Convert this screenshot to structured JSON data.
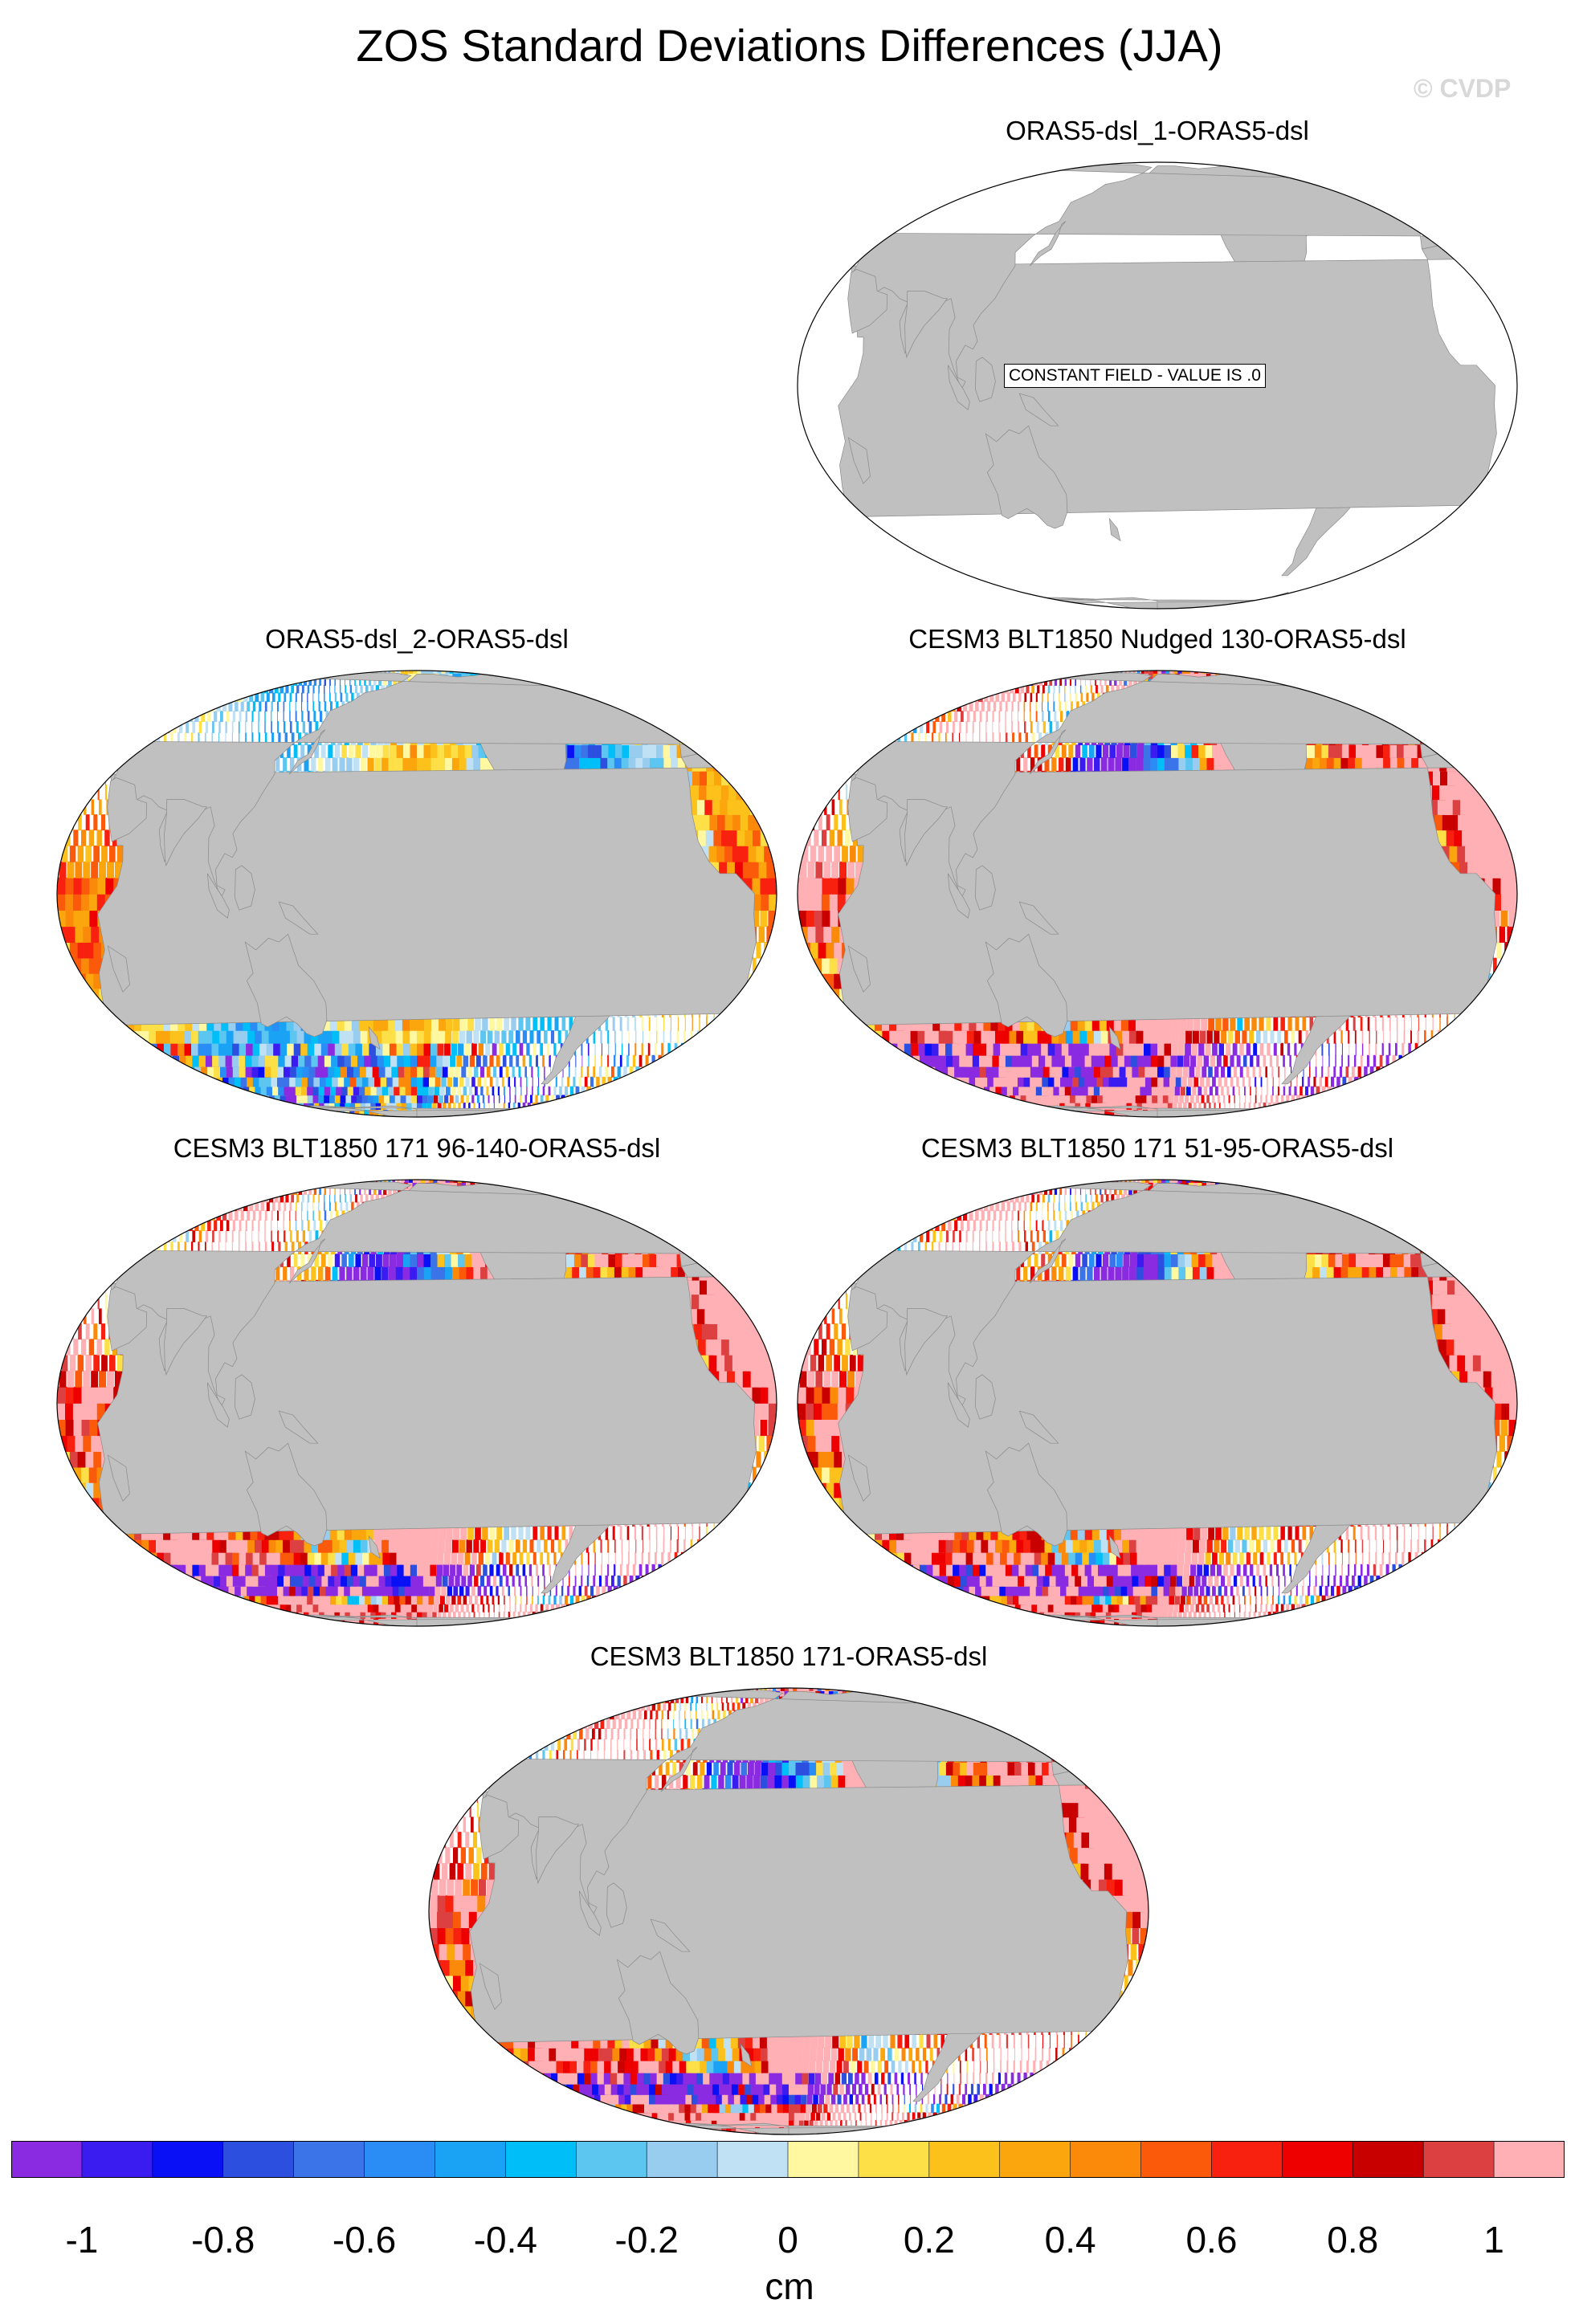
{
  "figure": {
    "title": "ZOS Standard Deviations Differences (JJA)",
    "credit": "© CVDP"
  },
  "chart_data": {
    "type": "heatmap",
    "title": "ZOS Standard Deviations Differences (JJA)",
    "projection": "global map (Robinson-like)",
    "panels": [
      {
        "title": "ORAS5-dsl_1-ORAS5-dsl",
        "note": "CONSTANT FIELD - VALUE IS .0",
        "constant": true
      },
      {
        "title": "ORAS5-dsl_2-ORAS5-dsl",
        "constant": false
      },
      {
        "title": "CESM3 BLT1850 Nudged 130-ORAS5-dsl",
        "constant": false
      },
      {
        "title": "CESM3 BLT1850 171 96-140-ORAS5-dsl",
        "constant": false
      },
      {
        "title": "CESM3 BLT1850 171 51-95-ORAS5-dsl",
        "constant": false
      },
      {
        "title": "CESM3 BLT1850 171-ORAS5-dsl",
        "constant": false
      }
    ],
    "colorbar": {
      "label": "cm",
      "range": [
        -1.1,
        1.1
      ],
      "levels": [
        -1,
        -0.9,
        -0.8,
        -0.7,
        -0.6,
        -0.5,
        -0.4,
        -0.3,
        -0.2,
        -0.1,
        0,
        0.1,
        0.2,
        0.3,
        0.4,
        0.5,
        0.6,
        0.7,
        0.8,
        0.9,
        1
      ],
      "tick_labels": [
        "-1",
        "-0.8",
        "-0.6",
        "-0.4",
        "-0.2",
        "0",
        "0.2",
        "0.4",
        "0.6",
        "0.8",
        "1"
      ],
      "colors": [
        "#8a2be2",
        "#3b1cf0",
        "#0a10f5",
        "#2d4fe0",
        "#3a74e8",
        "#2a8df5",
        "#1aa2f5",
        "#00bff8",
        "#5cc5f0",
        "#98cdef",
        "#c0e0f4",
        "#fff8a0",
        "#fde047",
        "#fcc11a",
        "#fba60c",
        "#fb8a0a",
        "#fb5a0a",
        "#f8200e",
        "#ee0000",
        "#c80000",
        "#dd4040",
        "#ffb0b4"
      ]
    },
    "colors": {
      "land": "#c0c0c0",
      "ocean_constant": "#ffffff"
    }
  }
}
